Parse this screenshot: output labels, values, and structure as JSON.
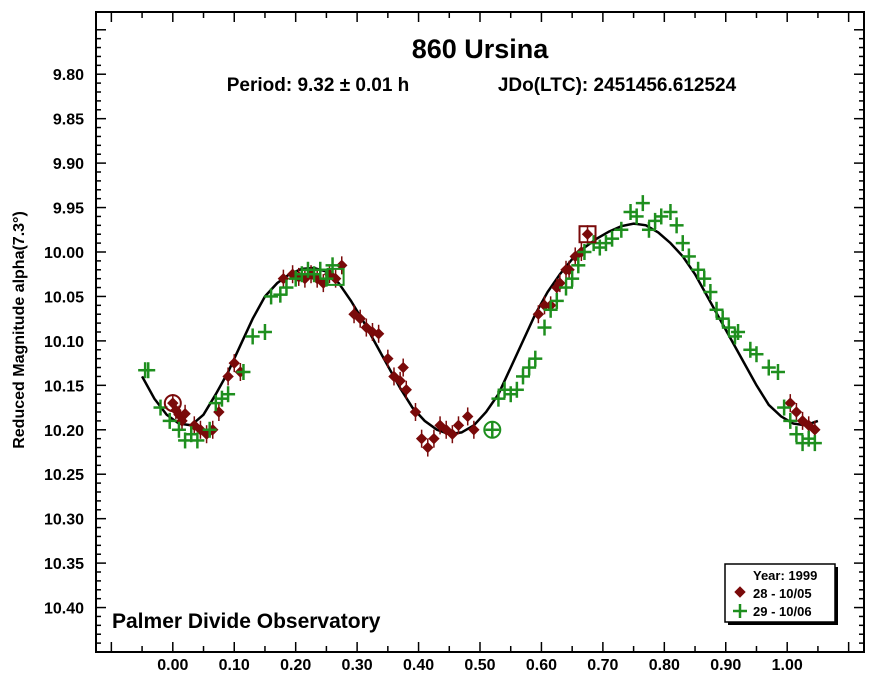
{
  "chart_data": {
    "type": "scatter",
    "title": "860 Ursina",
    "subtitle_period": "Period: 9.32 ± 0.01 h",
    "subtitle_epoch": "JDo(LTC): 2451456.612524",
    "ylabel": "Reduced Magnitude alpha(7.3°)",
    "footer": "Palmer Divide Observatory",
    "x_range": [
      -0.125,
      1.125
    ],
    "y_range": [
      9.73,
      10.45
    ],
    "y_inverted": true,
    "x_ticks": [
      "0.00",
      "0.10",
      "0.20",
      "0.30",
      "0.40",
      "0.50",
      "0.60",
      "0.70",
      "0.80",
      "0.90",
      "1.00"
    ],
    "x_tick_values": [
      0.0,
      0.1,
      0.2,
      0.3,
      0.4,
      0.5,
      0.6,
      0.7,
      0.8,
      0.9,
      1.0
    ],
    "y_ticks": [
      "9.80",
      "9.85",
      "9.90",
      "9.95",
      "10.00",
      "10.05",
      "10.10",
      "10.15",
      "10.20",
      "10.25",
      "10.30",
      "10.35",
      "10.40"
    ],
    "y_tick_values": [
      9.8,
      9.85,
      9.9,
      9.95,
      10.0,
      10.05,
      10.1,
      10.15,
      10.2,
      10.25,
      10.3,
      10.35,
      10.4
    ],
    "grid": false,
    "legend": {
      "placement": "bottom-right",
      "title": "Year: 1999",
      "entries": [
        {
          "label": "28 - 10/05",
          "marker": "diamond",
          "color": "#7a0a0a"
        },
        {
          "label": "29 - 10/06",
          "marker": "cross",
          "color": "#1e8f1e"
        }
      ]
    },
    "fit_curve": [
      {
        "x": -0.05,
        "y": 10.14
      },
      {
        "x": -0.03,
        "y": 10.165
      },
      {
        "x": -0.01,
        "y": 10.183
      },
      {
        "x": 0.01,
        "y": 10.193
      },
      {
        "x": 0.03,
        "y": 10.195
      },
      {
        "x": 0.05,
        "y": 10.183
      },
      {
        "x": 0.07,
        "y": 10.16
      },
      {
        "x": 0.09,
        "y": 10.135
      },
      {
        "x": 0.11,
        "y": 10.105
      },
      {
        "x": 0.13,
        "y": 10.075
      },
      {
        "x": 0.15,
        "y": 10.05
      },
      {
        "x": 0.17,
        "y": 10.035
      },
      {
        "x": 0.19,
        "y": 10.025
      },
      {
        "x": 0.21,
        "y": 10.019
      },
      {
        "x": 0.23,
        "y": 10.018
      },
      {
        "x": 0.25,
        "y": 10.022
      },
      {
        "x": 0.27,
        "y": 10.035
      },
      {
        "x": 0.29,
        "y": 10.055
      },
      {
        "x": 0.31,
        "y": 10.078
      },
      {
        "x": 0.33,
        "y": 10.103
      },
      {
        "x": 0.35,
        "y": 10.128
      },
      {
        "x": 0.37,
        "y": 10.153
      },
      {
        "x": 0.39,
        "y": 10.175
      },
      {
        "x": 0.41,
        "y": 10.19
      },
      {
        "x": 0.43,
        "y": 10.2
      },
      {
        "x": 0.45,
        "y": 10.205
      },
      {
        "x": 0.47,
        "y": 10.203
      },
      {
        "x": 0.49,
        "y": 10.195
      },
      {
        "x": 0.51,
        "y": 10.18
      },
      {
        "x": 0.53,
        "y": 10.16
      },
      {
        "x": 0.55,
        "y": 10.13
      },
      {
        "x": 0.57,
        "y": 10.1
      },
      {
        "x": 0.59,
        "y": 10.07
      },
      {
        "x": 0.61,
        "y": 10.045
      },
      {
        "x": 0.63,
        "y": 10.025
      },
      {
        "x": 0.65,
        "y": 10.008
      },
      {
        "x": 0.67,
        "y": 9.995
      },
      {
        "x": 0.69,
        "y": 9.985
      },
      {
        "x": 0.71,
        "y": 9.977
      },
      {
        "x": 0.73,
        "y": 9.971
      },
      {
        "x": 0.75,
        "y": 9.968
      },
      {
        "x": 0.77,
        "y": 9.97
      },
      {
        "x": 0.79,
        "y": 9.978
      },
      {
        "x": 0.81,
        "y": 9.99
      },
      {
        "x": 0.83,
        "y": 10.005
      },
      {
        "x": 0.85,
        "y": 10.025
      },
      {
        "x": 0.87,
        "y": 10.05
      },
      {
        "x": 0.89,
        "y": 10.075
      },
      {
        "x": 0.91,
        "y": 10.1
      },
      {
        "x": 0.93,
        "y": 10.125
      },
      {
        "x": 0.95,
        "y": 10.15
      },
      {
        "x": 0.97,
        "y": 10.172
      },
      {
        "x": 0.99,
        "y": 10.185
      },
      {
        "x": 1.01,
        "y": 10.193
      },
      {
        "x": 1.03,
        "y": 10.195
      },
      {
        "x": 1.05,
        "y": 10.19
      }
    ],
    "series": [
      {
        "name": "28 - 10/05",
        "marker": "diamond",
        "color": "#7a0a0a",
        "x": [
          0.0,
          0.005,
          0.01,
          0.015,
          0.02,
          0.035,
          0.045,
          0.055,
          0.065,
          0.075,
          0.09,
          0.1,
          0.11,
          0.18,
          0.195,
          0.205,
          0.215,
          0.225,
          0.235,
          0.245,
          0.255,
          0.265,
          0.275,
          0.295,
          0.305,
          0.315,
          0.325,
          0.335,
          0.35,
          0.36,
          0.37,
          0.375,
          0.38,
          0.395,
          0.405,
          0.415,
          0.425,
          0.435,
          0.445,
          0.455,
          0.465,
          0.48,
          0.49,
          0.595,
          0.605,
          0.615,
          0.625,
          0.63,
          0.64,
          0.645,
          0.655,
          0.665,
          0.675,
          1.005,
          1.015,
          1.025,
          1.035,
          1.045
        ],
        "y": [
          10.17,
          10.178,
          10.183,
          10.19,
          10.182,
          10.195,
          10.2,
          10.205,
          10.2,
          10.18,
          10.14,
          10.125,
          10.135,
          10.03,
          10.025,
          10.028,
          10.03,
          10.025,
          10.03,
          10.035,
          10.025,
          10.03,
          10.015,
          10.07,
          10.075,
          10.085,
          10.09,
          10.092,
          10.12,
          10.14,
          10.145,
          10.13,
          10.155,
          10.18,
          10.21,
          10.22,
          10.21,
          10.195,
          10.2,
          10.205,
          10.195,
          10.185,
          10.2,
          10.07,
          10.06,
          10.06,
          10.04,
          10.035,
          10.02,
          10.02,
          10.005,
          10.0,
          9.98,
          10.17,
          10.18,
          10.19,
          10.195,
          10.2
        ]
      },
      {
        "name": "29 - 10/06",
        "marker": "cross",
        "color": "#1e8f1e",
        "x": [
          -0.045,
          -0.04,
          -0.02,
          -0.005,
          0.01,
          0.02,
          0.03,
          0.04,
          0.06,
          0.07,
          0.08,
          0.09,
          0.115,
          0.13,
          0.15,
          0.16,
          0.175,
          0.185,
          0.2,
          0.21,
          0.22,
          0.23,
          0.24,
          0.25,
          0.26,
          0.52,
          0.53,
          0.54,
          0.55,
          0.56,
          0.57,
          0.58,
          0.59,
          0.605,
          0.615,
          0.625,
          0.64,
          0.65,
          0.66,
          0.67,
          0.685,
          0.695,
          0.705,
          0.715,
          0.73,
          0.745,
          0.755,
          0.765,
          0.775,
          0.785,
          0.795,
          0.81,
          0.82,
          0.83,
          0.84,
          0.855,
          0.865,
          0.875,
          0.885,
          0.895,
          0.905,
          0.915,
          0.92,
          0.94,
          0.95,
          0.97,
          0.985,
          0.995,
          1.005,
          1.015,
          1.025,
          1.035,
          1.045
        ],
        "y": [
          10.133,
          10.133,
          10.175,
          10.19,
          10.2,
          10.212,
          10.205,
          10.212,
          10.2,
          10.17,
          10.165,
          10.16,
          10.135,
          10.095,
          10.09,
          10.05,
          10.048,
          10.04,
          10.03,
          10.025,
          10.02,
          10.025,
          10.02,
          10.03,
          10.015,
          10.2,
          10.165,
          10.155,
          10.16,
          10.155,
          10.14,
          10.13,
          10.12,
          10.085,
          10.065,
          10.055,
          10.04,
          10.03,
          10.015,
          10.0,
          9.99,
          9.995,
          9.99,
          9.985,
          9.975,
          9.955,
          9.96,
          9.945,
          9.975,
          9.965,
          9.96,
          9.955,
          9.97,
          9.99,
          10.005,
          10.02,
          10.03,
          10.045,
          10.065,
          10.075,
          10.085,
          10.095,
          10.09,
          10.11,
          10.115,
          10.13,
          10.135,
          10.175,
          10.19,
          10.205,
          10.215,
          10.21,
          10.215
        ]
      }
    ],
    "marked_points": [
      {
        "x": 0.0,
        "y": 10.17,
        "shape": "circle",
        "color": "#7a0a0a"
      },
      {
        "x": 0.265,
        "y": 10.028,
        "shape": "square",
        "color": "#1e8f1e"
      },
      {
        "x": 0.52,
        "y": 10.2,
        "shape": "circle",
        "color": "#1e8f1e"
      },
      {
        "x": 0.675,
        "y": 9.98,
        "shape": "square",
        "color": "#7a0a0a"
      }
    ]
  }
}
